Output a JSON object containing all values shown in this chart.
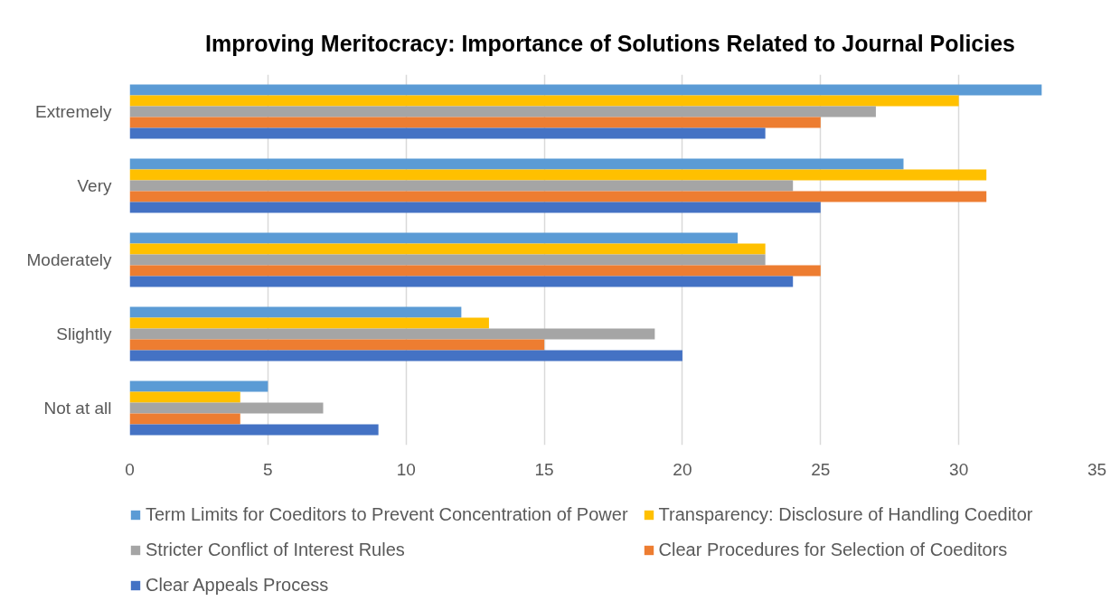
{
  "chart_data": {
    "type": "bar",
    "orientation": "horizontal",
    "title": "Improving Meritocracy:  Importance of Solutions Related to Journal Policies",
    "categories": [
      "Extremely",
      "Very",
      "Moderately",
      "Slightly",
      "Not at all"
    ],
    "series": [
      {
        "name": "Term Limits for Coeditors to Prevent Concentration of Power",
        "color": "#5b9bd5",
        "values": [
          33,
          28,
          22,
          12,
          5
        ]
      },
      {
        "name": "Transparency: Disclosure of Handling Coeditor",
        "color": "#ffc000",
        "values": [
          30,
          31,
          23,
          13,
          4
        ]
      },
      {
        "name": "Stricter Conflict of Interest Rules",
        "color": "#a5a5a5",
        "values": [
          27,
          24,
          23,
          19,
          7
        ]
      },
      {
        "name": "Clear Procedures for Selection of Coeditors",
        "color": "#ed7d31",
        "values": [
          25,
          31,
          25,
          15,
          4
        ]
      },
      {
        "name": "Clear Appeals Process",
        "color": "#4472c4",
        "values": [
          23,
          25,
          24,
          20,
          9
        ]
      }
    ],
    "xlim": [
      0,
      35
    ],
    "xticks": [
      0,
      5,
      10,
      15,
      20,
      25,
      30,
      35
    ],
    "grid": "x",
    "legend": "bottom"
  }
}
